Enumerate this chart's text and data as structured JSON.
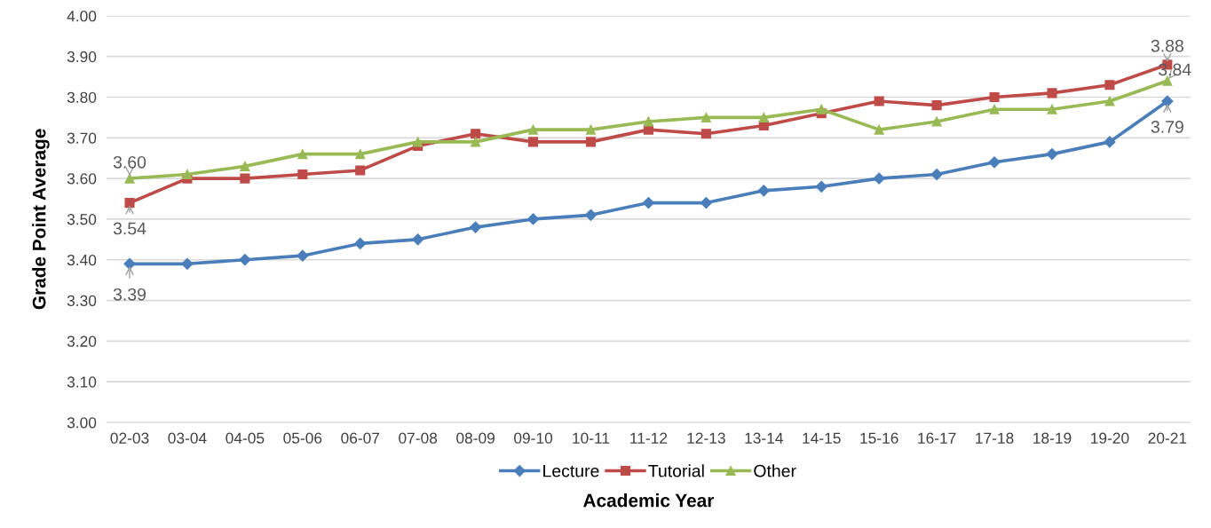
{
  "chart_data": {
    "type": "line",
    "xlabel": "Academic Year",
    "ylabel": "Grade Point Average",
    "categories": [
      "02-03",
      "03-04",
      "04-05",
      "05-06",
      "06-07",
      "07-08",
      "08-09",
      "09-10",
      "10-11",
      "11-12",
      "12-13",
      "13-14",
      "14-15",
      "15-16",
      "16-17",
      "17-18",
      "18-19",
      "19-20",
      "20-21"
    ],
    "series": [
      {
        "name": "Lecture",
        "color": "#4a7ebb",
        "marker": "diamond",
        "values": [
          3.39,
          3.39,
          3.4,
          3.41,
          3.44,
          3.45,
          3.48,
          3.5,
          3.51,
          3.54,
          3.54,
          3.57,
          3.58,
          3.6,
          3.61,
          3.64,
          3.66,
          3.69,
          3.79
        ]
      },
      {
        "name": "Tutorial",
        "color": "#be4b48",
        "marker": "square",
        "values": [
          3.54,
          3.6,
          3.6,
          3.61,
          3.62,
          3.68,
          3.71,
          3.69,
          3.69,
          3.72,
          3.71,
          3.73,
          3.76,
          3.79,
          3.78,
          3.8,
          3.81,
          3.83,
          3.88
        ]
      },
      {
        "name": "Other",
        "color": "#98b954",
        "marker": "triangle",
        "values": [
          3.6,
          3.61,
          3.63,
          3.66,
          3.66,
          3.69,
          3.69,
          3.72,
          3.72,
          3.74,
          3.75,
          3.75,
          3.77,
          3.72,
          3.74,
          3.77,
          3.77,
          3.79,
          3.84
        ]
      }
    ],
    "annotations": [
      {
        "text": "3.60",
        "x": "02-03",
        "y": 3.6
      },
      {
        "text": "3.54",
        "x": "02-03",
        "y": 3.54
      },
      {
        "text": "3.39",
        "x": "02-03",
        "y": 3.39
      },
      {
        "text": "3.88",
        "x": "20-21",
        "y": 3.88
      },
      {
        "text": "3.84",
        "x": "20-21",
        "y": 3.84
      },
      {
        "text": "3.79",
        "x": "20-21",
        "y": 3.79
      }
    ],
    "ylim": [
      3.0,
      4.0
    ],
    "yticks": [
      {
        "value": 3.0,
        "label": "3.00"
      },
      {
        "value": 3.1,
        "label": "3.10"
      },
      {
        "value": 3.2,
        "label": "3.20"
      },
      {
        "value": 3.3,
        "label": "3.30"
      },
      {
        "value": 3.4,
        "label": "3.40"
      },
      {
        "value": 3.5,
        "label": "3.50"
      },
      {
        "value": 3.6,
        "label": "3.60"
      },
      {
        "value": 3.7,
        "label": "3.70"
      },
      {
        "value": 3.8,
        "label": "3.80"
      },
      {
        "value": 3.9,
        "label": "3.90"
      },
      {
        "value": 4.0,
        "label": "4.00"
      }
    ],
    "grid": "y",
    "legend": "bottom",
    "line_style": "solid"
  }
}
